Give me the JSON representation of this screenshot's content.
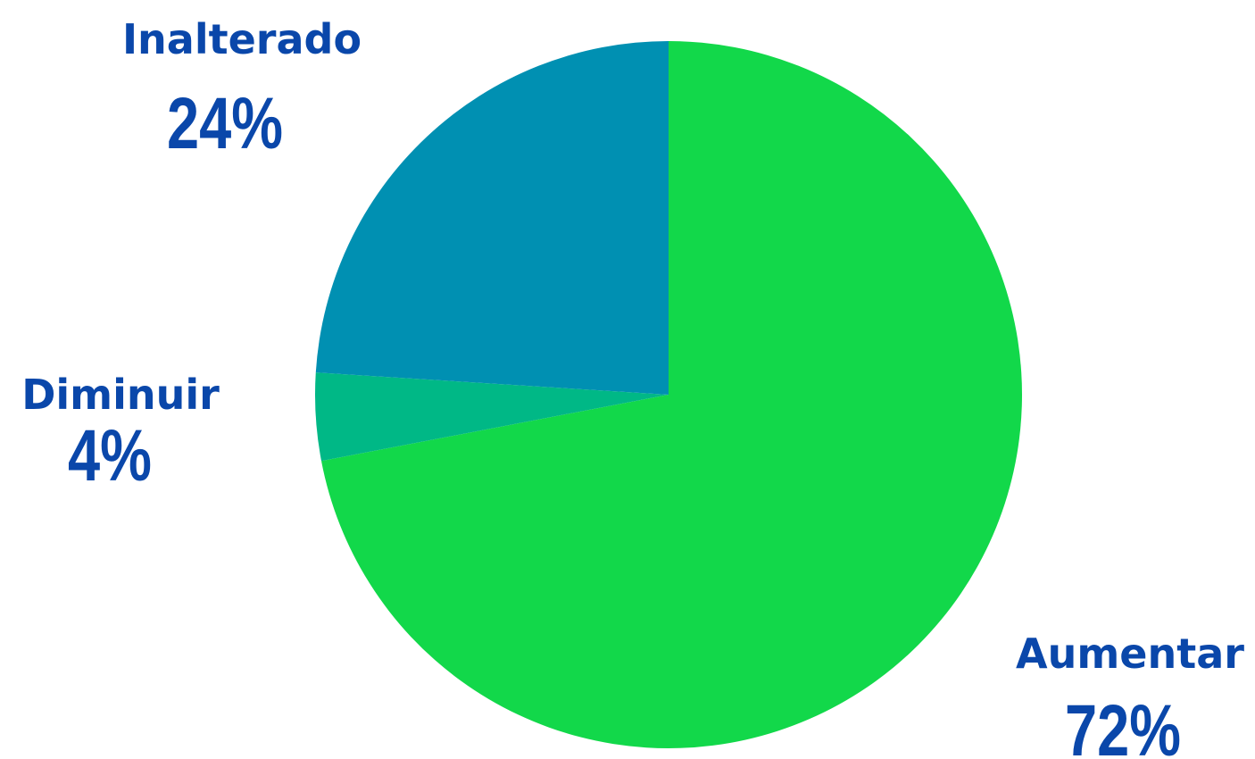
{
  "chart_data": {
    "type": "pie",
    "start_angle_deg": 0,
    "direction": "clockwise",
    "label_color": "#0a47aa",
    "slices": [
      {
        "label": "Aumentar",
        "value": 72,
        "value_label": "72%",
        "color": "#12d84a"
      },
      {
        "label": "Diminuir",
        "value": 4,
        "value_label": "4%",
        "color": "#00b886"
      },
      {
        "label": "Inalterado",
        "value": 24,
        "value_label": "24%",
        "color": "#0090b2"
      }
    ]
  }
}
